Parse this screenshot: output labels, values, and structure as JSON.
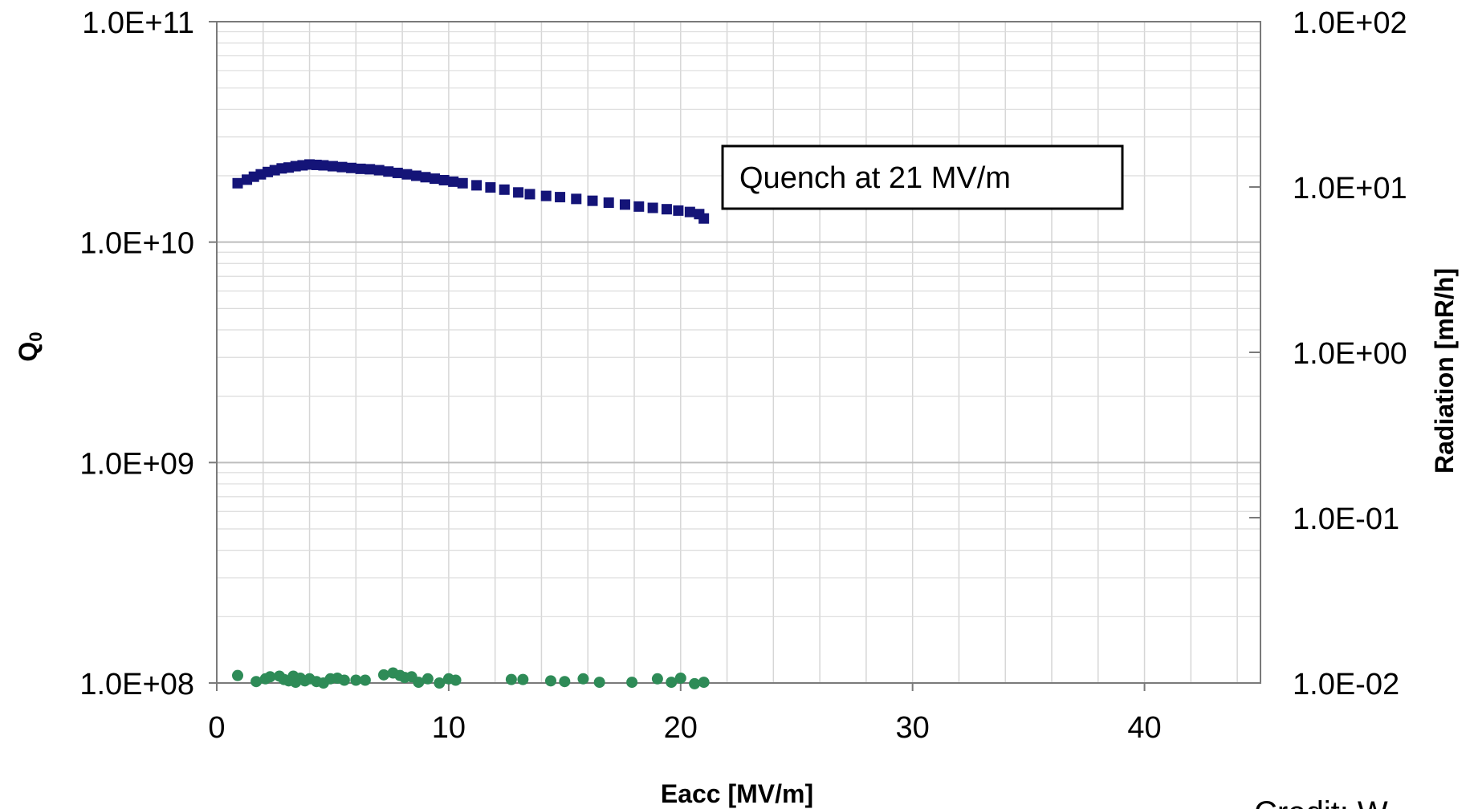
{
  "chart_data": {
    "type": "scatter",
    "x_axis": {
      "label": "Eacc [MV/m]",
      "range": [
        0,
        45
      ],
      "ticks": [
        0,
        10,
        20,
        30,
        40
      ],
      "tick_labels": [
        "0",
        "10",
        "20",
        "30",
        "40"
      ],
      "minor_step": 2
    },
    "y_axis_left": {
      "label": "Q",
      "label_subscript": "0",
      "scale": "log",
      "range": [
        100000000,
        100000000000
      ],
      "ticks": [
        100000000,
        1000000000,
        10000000000,
        100000000000
      ],
      "tick_labels": [
        "1.0E+08",
        "1.0E+09",
        "1.0E+10",
        "1.0E+11"
      ]
    },
    "y_axis_right": {
      "label": "Radiation [mR/h]",
      "scale": "log",
      "range": [
        0.01,
        100
      ],
      "ticks": [
        0.01,
        0.1,
        1,
        10,
        100
      ],
      "tick_labels": [
        "1.0E-02",
        "1.0E-01",
        "1.0E+00",
        "1.0E+01",
        "1.0E+02"
      ]
    },
    "grid": true,
    "series": [
      {
        "marker": "square",
        "color": "#141478",
        "axis": "left",
        "points": [
          [
            0.9,
            18500000000
          ],
          [
            1.3,
            19200000000
          ],
          [
            1.6,
            19800000000
          ],
          [
            1.9,
            20300000000
          ],
          [
            2.2,
            20800000000
          ],
          [
            2.5,
            21200000000
          ],
          [
            2.8,
            21600000000
          ],
          [
            3.1,
            21800000000
          ],
          [
            3.4,
            22100000000
          ],
          [
            3.7,
            22300000000
          ],
          [
            4.0,
            22500000000
          ],
          [
            4.3,
            22400000000
          ],
          [
            4.6,
            22300000000
          ],
          [
            5.0,
            22100000000
          ],
          [
            5.4,
            21900000000
          ],
          [
            5.8,
            21700000000
          ],
          [
            6.2,
            21500000000
          ],
          [
            6.6,
            21400000000
          ],
          [
            7.0,
            21200000000
          ],
          [
            7.4,
            20900000000
          ],
          [
            7.8,
            20600000000
          ],
          [
            8.2,
            20300000000
          ],
          [
            8.6,
            20000000000
          ],
          [
            9.0,
            19700000000
          ],
          [
            9.4,
            19400000000
          ],
          [
            9.8,
            19100000000
          ],
          [
            10.2,
            18800000000
          ],
          [
            10.6,
            18500000000
          ],
          [
            11.2,
            18100000000
          ],
          [
            11.8,
            17700000000
          ],
          [
            12.4,
            17300000000
          ],
          [
            13.0,
            16800000000
          ],
          [
            13.5,
            16500000000
          ],
          [
            14.2,
            16200000000
          ],
          [
            14.8,
            16000000000
          ],
          [
            15.5,
            15700000000
          ],
          [
            16.2,
            15400000000
          ],
          [
            16.9,
            15100000000
          ],
          [
            17.6,
            14800000000
          ],
          [
            18.2,
            14500000000
          ],
          [
            18.8,
            14300000000
          ],
          [
            19.4,
            14100000000
          ],
          [
            19.9,
            13900000000
          ],
          [
            20.4,
            13700000000
          ],
          [
            20.8,
            13400000000
          ],
          [
            21.0,
            12800000000
          ]
        ]
      },
      {
        "marker": "circle",
        "color": "#2e8b57",
        "axis": "right",
        "points": [
          [
            0.9,
            0.0111
          ],
          [
            1.7,
            0.0102
          ],
          [
            2.1,
            0.0106
          ],
          [
            2.3,
            0.0109
          ],
          [
            2.7,
            0.011
          ],
          [
            2.9,
            0.0105
          ],
          [
            3.1,
            0.0103
          ],
          [
            3.3,
            0.011
          ],
          [
            3.4,
            0.0101
          ],
          [
            3.6,
            0.0107
          ],
          [
            3.8,
            0.0103
          ],
          [
            4.0,
            0.0106
          ],
          [
            4.3,
            0.0102
          ],
          [
            4.6,
            0.01
          ],
          [
            4.9,
            0.0106
          ],
          [
            5.2,
            0.0107
          ],
          [
            5.5,
            0.0104
          ],
          [
            6.0,
            0.0104
          ],
          [
            6.4,
            0.0104
          ],
          [
            7.2,
            0.0112
          ],
          [
            7.6,
            0.0115
          ],
          [
            7.9,
            0.0111
          ],
          [
            8.1,
            0.0108
          ],
          [
            8.4,
            0.0109
          ],
          [
            8.7,
            0.0101
          ],
          [
            9.1,
            0.0106
          ],
          [
            9.6,
            0.01
          ],
          [
            10.0,
            0.0106
          ],
          [
            10.3,
            0.0104
          ],
          [
            12.7,
            0.0105
          ],
          [
            13.2,
            0.0105
          ],
          [
            14.4,
            0.0103
          ],
          [
            15.0,
            0.0102
          ],
          [
            15.8,
            0.0106
          ],
          [
            16.5,
            0.0101
          ],
          [
            17.9,
            0.0101
          ],
          [
            19.0,
            0.0106
          ],
          [
            19.6,
            0.0101
          ],
          [
            20.0,
            0.0107
          ],
          [
            20.6,
            0.0099
          ],
          [
            21.0,
            0.0101
          ]
        ]
      }
    ],
    "annotation": {
      "text": "Quench at 21 MV/m"
    }
  },
  "footer": {
    "credit": "Credit: W"
  }
}
